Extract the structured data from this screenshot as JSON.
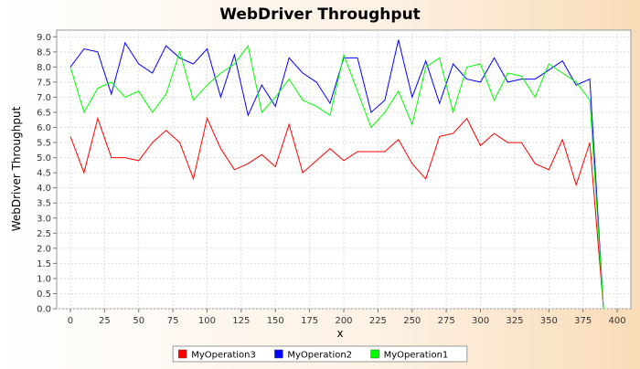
{
  "chart_data": {
    "type": "line",
    "title": "WebDriver Throughput",
    "xlabel": "x",
    "ylabel": "WebDriver Throughput",
    "xlim": [
      -10,
      410
    ],
    "ylim": [
      0,
      9.0
    ],
    "x_ticks": [
      "0",
      "25",
      "50",
      "75",
      "100",
      "125",
      "150",
      "175",
      "200",
      "225",
      "250",
      "275",
      "300",
      "325",
      "350",
      "375",
      "400"
    ],
    "y_ticks": [
      "0.0",
      "0.5",
      "1.0",
      "1.5",
      "2.0",
      "2.5",
      "3.0",
      "3.5",
      "4.0",
      "4.5",
      "5.0",
      "5.5",
      "6.0",
      "6.5",
      "7.0",
      "7.5",
      "8.0",
      "8.5",
      "9.0"
    ],
    "grid": true,
    "legend_position": "bottom",
    "x": [
      0,
      10,
      20,
      30,
      40,
      50,
      60,
      70,
      80,
      90,
      100,
      110,
      120,
      130,
      140,
      150,
      160,
      170,
      180,
      190,
      200,
      210,
      220,
      230,
      240,
      250,
      260,
      270,
      280,
      290,
      300,
      310,
      320,
      330,
      340,
      350,
      360,
      370,
      380,
      390
    ],
    "series": [
      {
        "name": "MyOperation3",
        "color": "#ff0000",
        "values": [
          5.7,
          4.5,
          6.3,
          5.0,
          5.0,
          4.9,
          5.5,
          5.9,
          5.5,
          4.3,
          6.3,
          5.3,
          4.6,
          4.8,
          5.1,
          4.7,
          6.1,
          4.5,
          4.9,
          5.3,
          4.9,
          5.2,
          5.2,
          5.2,
          5.6,
          4.8,
          4.3,
          5.7,
          5.8,
          6.3,
          5.4,
          5.8,
          5.5,
          5.5,
          4.8,
          4.6,
          5.6,
          4.1,
          5.5,
          0.0
        ]
      },
      {
        "name": "MyOperation2",
        "color": "#0000ff",
        "values": [
          8.0,
          8.6,
          8.5,
          7.1,
          8.8,
          8.1,
          7.8,
          8.7,
          8.3,
          8.1,
          8.6,
          7.0,
          8.4,
          6.4,
          7.4,
          6.7,
          8.3,
          7.8,
          7.5,
          6.8,
          8.3,
          8.3,
          6.5,
          6.9,
          8.9,
          7.0,
          8.2,
          6.8,
          8.1,
          7.6,
          7.5,
          8.3,
          7.5,
          7.6,
          7.6,
          7.9,
          8.2,
          7.4,
          7.6,
          0.0
        ]
      },
      {
        "name": "MyOperation1",
        "color": "#00ff00",
        "values": [
          8.0,
          6.5,
          7.3,
          7.5,
          7.0,
          7.2,
          6.5,
          7.1,
          8.5,
          6.9,
          7.4,
          7.8,
          8.1,
          8.7,
          6.5,
          7.0,
          7.6,
          6.9,
          6.7,
          6.4,
          8.4,
          7.2,
          6.0,
          6.5,
          7.2,
          6.1,
          8.0,
          8.3,
          6.5,
          8.0,
          8.1,
          6.9,
          7.8,
          7.7,
          7.0,
          8.1,
          7.8,
          7.5,
          6.9,
          0.0
        ]
      }
    ]
  }
}
